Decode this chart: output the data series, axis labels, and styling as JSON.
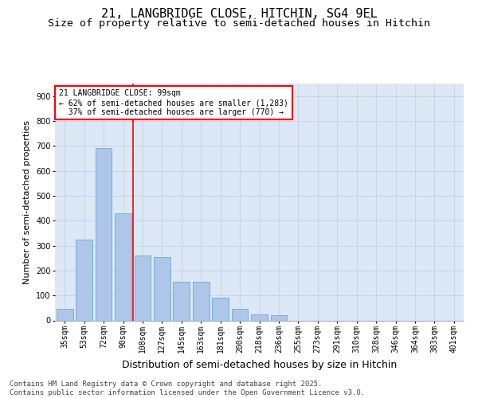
{
  "title": "21, LANGBRIDGE CLOSE, HITCHIN, SG4 9EL",
  "subtitle": "Size of property relative to semi-detached houses in Hitchin",
  "xlabel": "Distribution of semi-detached houses by size in Hitchin",
  "ylabel": "Number of semi-detached properties",
  "categories": [
    "35sqm",
    "53sqm",
    "72sqm",
    "90sqm",
    "108sqm",
    "127sqm",
    "145sqm",
    "163sqm",
    "181sqm",
    "200sqm",
    "218sqm",
    "236sqm",
    "255sqm",
    "273sqm",
    "291sqm",
    "310sqm",
    "328sqm",
    "346sqm",
    "364sqm",
    "383sqm",
    "401sqm"
  ],
  "values": [
    45,
    325,
    690,
    430,
    260,
    255,
    155,
    155,
    90,
    45,
    25,
    20,
    0,
    0,
    0,
    0,
    0,
    0,
    0,
    0,
    0
  ],
  "bar_color": "#aec6e8",
  "bar_edge_color": "#6aaad4",
  "grid_color": "#c8d4e8",
  "bg_color": "#dce8f5",
  "annotation_text": "21 LANGBRIDGE CLOSE: 99sqm\n← 62% of semi-detached houses are smaller (1,283)\n  37% of semi-detached houses are larger (770) →",
  "vline_x": 3.5,
  "ylim": [
    0,
    950
  ],
  "yticks": [
    0,
    100,
    200,
    300,
    400,
    500,
    600,
    700,
    800,
    900
  ],
  "footer": "Contains HM Land Registry data © Crown copyright and database right 2025.\nContains public sector information licensed under the Open Government Licence v3.0.",
  "title_fontsize": 11,
  "subtitle_fontsize": 9.5,
  "xlabel_fontsize": 9,
  "ylabel_fontsize": 8,
  "tick_fontsize": 7,
  "footer_fontsize": 6.5,
  "ann_fontsize": 7
}
